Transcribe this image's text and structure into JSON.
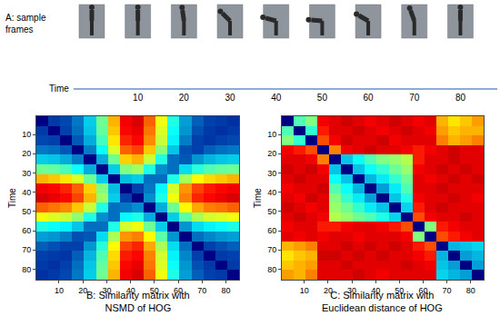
{
  "panel_a": {
    "title": [
      "A: sample",
      "frames"
    ],
    "xlabel": "Time",
    "frames": [
      0,
      10,
      20,
      30,
      40,
      50,
      60,
      70,
      80
    ],
    "xlim": [
      -4,
      88
    ],
    "xticks": [
      10,
      20,
      30,
      40,
      50,
      60,
      70,
      80
    ]
  },
  "chart_data": [
    {
      "type": "heatmap",
      "caption": [
        "B: Similarity matrix with",
        "NSMD of HOG"
      ],
      "ylabel": "Time",
      "color": "jet",
      "zlim": [
        0,
        1
      ],
      "x": [
        3,
        8,
        13,
        18,
        23,
        28,
        33,
        38,
        43,
        48,
        53,
        58,
        63,
        68,
        73,
        78,
        83
      ],
      "y": [
        3,
        8,
        13,
        18,
        23,
        28,
        33,
        38,
        43,
        48,
        53,
        58,
        63,
        68,
        73,
        78,
        83
      ],
      "xlim": [
        0.5,
        85.5
      ],
      "ylim": [
        85.5,
        0.5
      ],
      "xticks": [
        10,
        20,
        30,
        40,
        50,
        60,
        70,
        80
      ],
      "yticks": [
        10,
        20,
        30,
        40,
        50,
        60,
        70,
        80
      ],
      "cells": [
        [
          0,
          0.12,
          0.14,
          0.2,
          0.31,
          0.48,
          0.7,
          0.88,
          0.91,
          0.78,
          0.61,
          0.4,
          0.25,
          0.17,
          0.13,
          0.12,
          0.1
        ],
        [
          0.12,
          0,
          0.13,
          0.19,
          0.3,
          0.47,
          0.68,
          0.87,
          0.89,
          0.76,
          0.59,
          0.38,
          0.24,
          0.15,
          0.12,
          0.1,
          0.12
        ],
        [
          0.14,
          0.13,
          0,
          0.16,
          0.27,
          0.44,
          0.65,
          0.84,
          0.87,
          0.74,
          0.57,
          0.36,
          0.21,
          0.13,
          0.11,
          0.13,
          0.14
        ],
        [
          0.2,
          0.19,
          0.16,
          0,
          0.21,
          0.38,
          0.59,
          0.78,
          0.81,
          0.68,
          0.51,
          0.3,
          0.15,
          0.13,
          0.17,
          0.19,
          0.2
        ],
        [
          0.31,
          0.3,
          0.27,
          0.21,
          0,
          0.27,
          0.48,
          0.67,
          0.7,
          0.57,
          0.4,
          0.19,
          0.16,
          0.24,
          0.28,
          0.3,
          0.31
        ],
        [
          0.48,
          0.47,
          0.44,
          0.38,
          0.27,
          0,
          0.31,
          0.5,
          0.53,
          0.4,
          0.23,
          0.19,
          0.33,
          0.41,
          0.45,
          0.47,
          0.48
        ],
        [
          0.7,
          0.68,
          0.65,
          0.59,
          0.48,
          0.31,
          0,
          0.29,
          0.31,
          0.19,
          0.19,
          0.4,
          0.54,
          0.63,
          0.66,
          0.68,
          0.7
        ],
        [
          0.88,
          0.87,
          0.84,
          0.78,
          0.67,
          0.5,
          0.29,
          0,
          0.13,
          0.2,
          0.37,
          0.58,
          0.73,
          0.81,
          0.85,
          0.87,
          0.88
        ],
        [
          0.91,
          0.89,
          0.87,
          0.81,
          0.7,
          0.53,
          0.31,
          0.13,
          0,
          0.23,
          0.4,
          0.61,
          0.75,
          0.84,
          0.87,
          0.89,
          0.91
        ],
        [
          0.78,
          0.76,
          0.74,
          0.68,
          0.57,
          0.4,
          0.19,
          0.2,
          0.23,
          0,
          0.27,
          0.48,
          0.63,
          0.71,
          0.75,
          0.76,
          0.78
        ],
        [
          0.61,
          0.59,
          0.57,
          0.51,
          0.4,
          0.23,
          0.19,
          0.37,
          0.4,
          0.27,
          0,
          0.31,
          0.46,
          0.54,
          0.58,
          0.59,
          0.61
        ],
        [
          0.4,
          0.38,
          0.36,
          0.3,
          0.19,
          0.19,
          0.4,
          0.58,
          0.61,
          0.48,
          0.31,
          0,
          0.24,
          0.33,
          0.36,
          0.38,
          0.4
        ],
        [
          0.25,
          0.24,
          0.21,
          0.15,
          0.16,
          0.33,
          0.54,
          0.73,
          0.75,
          0.63,
          0.46,
          0.24,
          0,
          0.19,
          0.22,
          0.24,
          0.25
        ],
        [
          0.17,
          0.15,
          0.13,
          0.13,
          0.24,
          0.41,
          0.63,
          0.81,
          0.84,
          0.71,
          0.54,
          0.33,
          0.19,
          0,
          0.13,
          0.15,
          0.17
        ],
        [
          0.13,
          0.12,
          0.11,
          0.17,
          0.28,
          0.45,
          0.66,
          0.85,
          0.87,
          0.75,
          0.58,
          0.36,
          0.22,
          0.13,
          0,
          0.12,
          0.13
        ],
        [
          0.12,
          0.1,
          0.13,
          0.19,
          0.3,
          0.47,
          0.68,
          0.87,
          0.89,
          0.76,
          0.59,
          0.38,
          0.24,
          0.15,
          0.12,
          0,
          0.12
        ],
        [
          0.1,
          0.12,
          0.14,
          0.2,
          0.31,
          0.48,
          0.7,
          0.88,
          0.91,
          0.78,
          0.61,
          0.4,
          0.25,
          0.17,
          0.13,
          0.12,
          0
        ]
      ]
    },
    {
      "type": "heatmap",
      "caption": [
        "C: Similarity matrix with",
        "Euclidean distance of HOG"
      ],
      "ylabel": "Time",
      "color": "jet",
      "zlim": [
        0,
        1
      ],
      "x": [
        3,
        8,
        13,
        18,
        23,
        28,
        33,
        38,
        43,
        48,
        53,
        58,
        63,
        68,
        73,
        78,
        83
      ],
      "y": [
        3,
        8,
        13,
        18,
        23,
        28,
        33,
        38,
        43,
        48,
        53,
        58,
        63,
        68,
        73,
        78,
        83
      ],
      "xlim": [
        0.5,
        85.5
      ],
      "ylim": [
        85.5,
        0.5
      ],
      "xticks": [
        10,
        20,
        30,
        40,
        50,
        60,
        70,
        80
      ],
      "yticks": [
        10,
        20,
        30,
        40,
        50,
        60,
        70,
        80
      ],
      "cells": [
        [
          0,
          0.45,
          0.5,
          0.88,
          0.9,
          0.92,
          0.9,
          0.88,
          0.9,
          0.92,
          0.9,
          0.88,
          0.9,
          0.7,
          0.65,
          0.68,
          0.72
        ],
        [
          0.45,
          0,
          0.42,
          0.85,
          0.9,
          0.9,
          0.92,
          0.9,
          0.88,
          0.9,
          0.92,
          0.9,
          0.88,
          0.72,
          0.68,
          0.7,
          0.7
        ],
        [
          0.5,
          0.42,
          0,
          0.8,
          0.88,
          0.92,
          0.9,
          0.9,
          0.92,
          0.88,
          0.9,
          0.9,
          0.9,
          0.75,
          0.7,
          0.72,
          0.75
        ],
        [
          0.88,
          0.85,
          0.8,
          0,
          0.75,
          0.88,
          0.9,
          0.92,
          0.9,
          0.9,
          0.88,
          0.85,
          0.88,
          0.9,
          0.92,
          0.9,
          0.9
        ],
        [
          0.9,
          0.9,
          0.88,
          0.75,
          0,
          0.3,
          0.38,
          0.45,
          0.5,
          0.52,
          0.55,
          0.85,
          0.9,
          0.9,
          0.92,
          0.9,
          0.9
        ],
        [
          0.92,
          0.9,
          0.92,
          0.88,
          0.3,
          0,
          0.3,
          0.38,
          0.42,
          0.48,
          0.52,
          0.88,
          0.9,
          0.92,
          0.9,
          0.92,
          0.9
        ],
        [
          0.9,
          0.92,
          0.9,
          0.9,
          0.38,
          0.3,
          0,
          0.28,
          0.35,
          0.42,
          0.48,
          0.9,
          0.88,
          0.9,
          0.92,
          0.9,
          0.92
        ],
        [
          0.88,
          0.9,
          0.9,
          0.92,
          0.45,
          0.38,
          0.28,
          0,
          0.25,
          0.35,
          0.45,
          0.9,
          0.9,
          0.92,
          0.9,
          0.9,
          0.9
        ],
        [
          0.9,
          0.88,
          0.92,
          0.9,
          0.5,
          0.42,
          0.35,
          0.25,
          0,
          0.3,
          0.4,
          0.88,
          0.9,
          0.9,
          0.92,
          0.9,
          0.88
        ],
        [
          0.92,
          0.9,
          0.88,
          0.9,
          0.52,
          0.48,
          0.42,
          0.35,
          0.3,
          0,
          0.32,
          0.85,
          0.9,
          0.92,
          0.9,
          0.9,
          0.9
        ],
        [
          0.9,
          0.92,
          0.9,
          0.88,
          0.55,
          0.52,
          0.48,
          0.45,
          0.4,
          0.32,
          0,
          0.8,
          0.88,
          0.9,
          0.9,
          0.92,
          0.9
        ],
        [
          0.88,
          0.9,
          0.9,
          0.85,
          0.85,
          0.88,
          0.9,
          0.9,
          0.88,
          0.85,
          0.8,
          0,
          0.5,
          0.85,
          0.88,
          0.9,
          0.9
        ],
        [
          0.9,
          0.88,
          0.9,
          0.88,
          0.9,
          0.9,
          0.88,
          0.9,
          0.9,
          0.9,
          0.88,
          0.5,
          0,
          0.8,
          0.85,
          0.88,
          0.9
        ],
        [
          0.7,
          0.72,
          0.75,
          0.9,
          0.9,
          0.92,
          0.9,
          0.92,
          0.9,
          0.92,
          0.9,
          0.85,
          0.8,
          0,
          0.28,
          0.3,
          0.32
        ],
        [
          0.65,
          0.68,
          0.7,
          0.92,
          0.92,
          0.9,
          0.92,
          0.9,
          0.92,
          0.9,
          0.9,
          0.88,
          0.85,
          0.28,
          0,
          0.25,
          0.28
        ],
        [
          0.68,
          0.7,
          0.72,
          0.9,
          0.9,
          0.92,
          0.9,
          0.9,
          0.9,
          0.9,
          0.92,
          0.9,
          0.88,
          0.3,
          0.25,
          0,
          0.25
        ],
        [
          0.72,
          0.7,
          0.75,
          0.9,
          0.9,
          0.9,
          0.92,
          0.9,
          0.88,
          0.9,
          0.9,
          0.9,
          0.9,
          0.32,
          0.28,
          0.25,
          0
        ]
      ]
    }
  ]
}
